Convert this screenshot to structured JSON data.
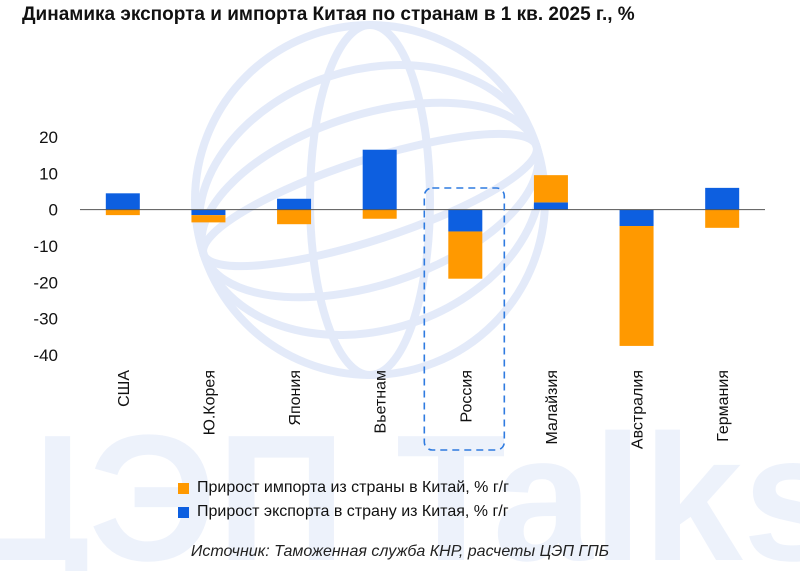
{
  "chart_data": {
    "type": "bar",
    "stacked": true,
    "title": "Динамика экспорта и импорта Китая по странам в 1 кв. 2025 г., %",
    "categories": [
      "США",
      "Ю.Корея",
      "Япония",
      "Вьетнам",
      "Россия",
      "Малайзия",
      "Австралия",
      "Германия"
    ],
    "series": [
      {
        "name": "Прирост импорта из страны в Китай, % г/г",
        "color": "#FF9900",
        "values": [
          -1.5,
          -2,
          -4,
          -2.5,
          -13,
          7.5,
          -33,
          -5
        ]
      },
      {
        "name": "Прирост экспорта в страну из Китая, % г/г",
        "color": "#0D5FE0",
        "values": [
          4.5,
          -1.5,
          3,
          16.5,
          -6,
          2,
          -4.5,
          6
        ]
      }
    ],
    "ylim": [
      -40,
      20
    ],
    "yticks": [
      20,
      10,
      0,
      -10,
      -20,
      -30,
      -40
    ],
    "highlight_category": "Россия",
    "legend_position": "bottom",
    "source": "Источник: Таможенная служба КНР, расчеты ЦЭП ГПБ",
    "watermark": "ЦЭП Talks"
  }
}
